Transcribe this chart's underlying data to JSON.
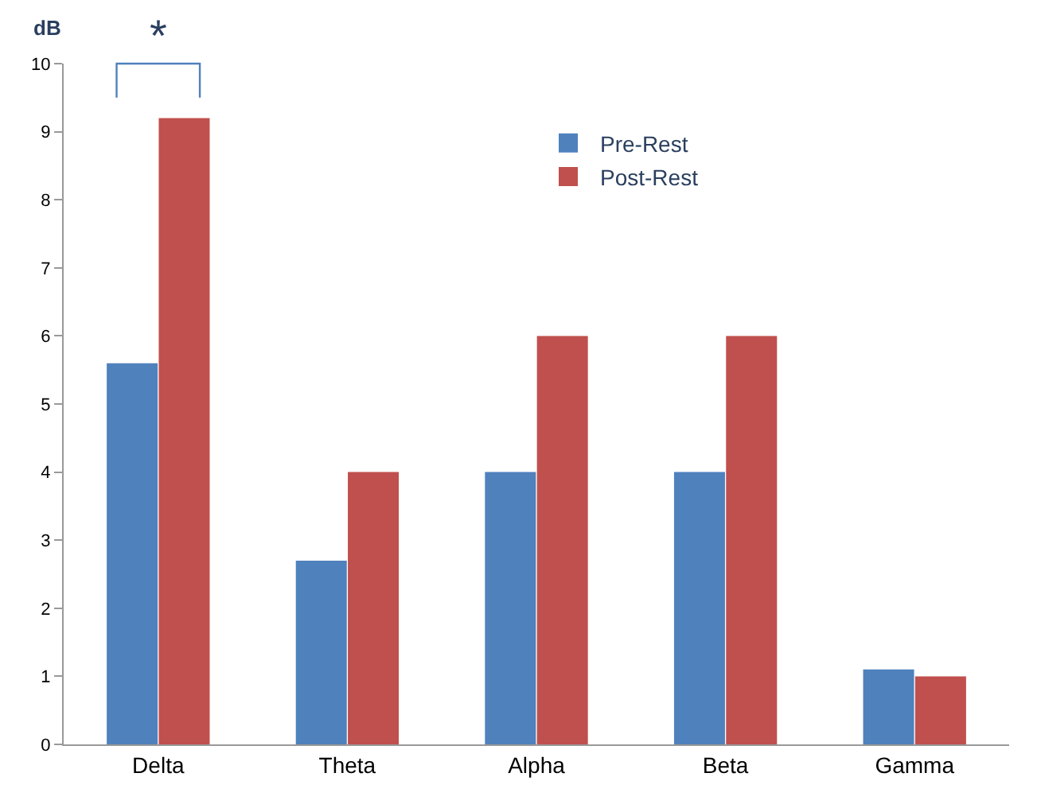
{
  "chart_data": {
    "type": "bar",
    "ylabel": "dB",
    "categories": [
      "Delta",
      "Theta",
      "Alpha",
      "Beta",
      "Gamma"
    ],
    "series": [
      {
        "name": "Pre-Rest",
        "color": "#4f81bd",
        "values": [
          5.6,
          2.7,
          4.0,
          4.0,
          1.1
        ]
      },
      {
        "name": "Post-Rest",
        "color": "#c0504d",
        "values": [
          9.2,
          4.0,
          6.0,
          6.0,
          1.0
        ]
      }
    ],
    "ylim": [
      0,
      10
    ],
    "yticks": [
      0,
      1,
      2,
      3,
      4,
      5,
      6,
      7,
      8,
      9,
      10
    ],
    "legend": "top",
    "annotations": [
      "*"
    ]
  }
}
